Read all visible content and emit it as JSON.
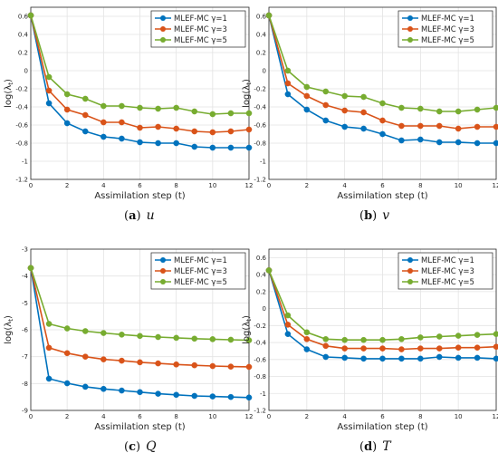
{
  "chart_data": [
    {
      "type": "line",
      "caption": {
        "label": "(a)",
        "symbol": "u"
      },
      "xlabel": "Assimilation step (t)",
      "ylabel": "log(λ_t)",
      "xlim": [
        0,
        12
      ],
      "ylim": [
        -1.2,
        0.7
      ],
      "xticks": [
        "0",
        "2",
        "4",
        "6",
        "8",
        "10",
        "12"
      ],
      "yticks": [
        "0.6",
        "0.4",
        "0.2",
        "0",
        "-0.2",
        "-0.4",
        "-0.6",
        "-0.8",
        "-1",
        "-1.2"
      ],
      "x": [
        0,
        1,
        2,
        3,
        4,
        5,
        6,
        7,
        8,
        9,
        10,
        11,
        12
      ],
      "grid": true,
      "legend_position": "top-right",
      "series": [
        {
          "name": "MLEF-MC γ=1",
          "color": "#0072BD",
          "values": [
            0.61,
            -0.36,
            -0.58,
            -0.67,
            -0.73,
            -0.75,
            -0.79,
            -0.8,
            -0.8,
            -0.84,
            -0.85,
            -0.85,
            -0.85
          ]
        },
        {
          "name": "MLEF-MC γ=3",
          "color": "#D95319",
          "values": [
            0.61,
            -0.22,
            -0.43,
            -0.49,
            -0.57,
            -0.57,
            -0.63,
            -0.62,
            -0.64,
            -0.67,
            -0.68,
            -0.67,
            -0.65
          ]
        },
        {
          "name": "MLEF-MC γ=5",
          "color": "#77AC30",
          "values": [
            0.61,
            -0.07,
            -0.26,
            -0.31,
            -0.39,
            -0.39,
            -0.41,
            -0.42,
            -0.41,
            -0.45,
            -0.48,
            -0.47,
            -0.47
          ]
        }
      ]
    },
    {
      "type": "line",
      "caption": {
        "label": "(b)",
        "symbol": "v"
      },
      "xlabel": "Assimilation step (t)",
      "ylabel": "log(λ_t)",
      "xlim": [
        0,
        12
      ],
      "ylim": [
        -1.2,
        0.7
      ],
      "xticks": [
        "0",
        "2",
        "4",
        "6",
        "8",
        "10",
        "12"
      ],
      "yticks": [
        "0.6",
        "0.4",
        "0.2",
        "0",
        "-0.2",
        "-0.4",
        "-0.6",
        "-0.8",
        "-1",
        "-1.2"
      ],
      "x": [
        0,
        1,
        2,
        3,
        4,
        5,
        6,
        7,
        8,
        9,
        10,
        11,
        12
      ],
      "grid": true,
      "legend_position": "top-right",
      "series": [
        {
          "name": "MLEF-MC γ=1",
          "color": "#0072BD",
          "values": [
            0.61,
            -0.26,
            -0.43,
            -0.55,
            -0.62,
            -0.64,
            -0.7,
            -0.77,
            -0.76,
            -0.79,
            -0.79,
            -0.8,
            -0.8
          ]
        },
        {
          "name": "MLEF-MC γ=3",
          "color": "#D95319",
          "values": [
            0.61,
            -0.14,
            -0.28,
            -0.38,
            -0.44,
            -0.46,
            -0.55,
            -0.61,
            -0.61,
            -0.61,
            -0.64,
            -0.62,
            -0.62
          ]
        },
        {
          "name": "MLEF-MC γ=5",
          "color": "#77AC30",
          "values": [
            0.61,
            0.0,
            -0.18,
            -0.23,
            -0.28,
            -0.29,
            -0.36,
            -0.41,
            -0.42,
            -0.45,
            -0.45,
            -0.43,
            -0.41
          ]
        }
      ]
    },
    {
      "type": "line",
      "caption": {
        "label": "(c)",
        "symbol": "Q"
      },
      "xlabel": "Assimilation step (t)",
      "ylabel": "log(λ_t)",
      "xlim": [
        0,
        12
      ],
      "ylim": [
        -9,
        -3
      ],
      "xticks": [
        "0",
        "2",
        "4",
        "6",
        "8",
        "10",
        "12"
      ],
      "yticks": [
        "-3",
        "-4",
        "-5",
        "-6",
        "-7",
        "-8",
        "-9"
      ],
      "x": [
        0,
        1,
        2,
        3,
        4,
        5,
        6,
        7,
        8,
        9,
        10,
        11,
        12
      ],
      "grid": true,
      "legend_position": "top-right",
      "series": [
        {
          "name": "MLEF-MC γ=1",
          "color": "#0072BD",
          "values": [
            -3.7,
            -7.82,
            -7.99,
            -8.12,
            -8.2,
            -8.26,
            -8.32,
            -8.38,
            -8.42,
            -8.46,
            -8.48,
            -8.5,
            -8.52
          ]
        },
        {
          "name": "MLEF-MC γ=3",
          "color": "#D95319",
          "values": [
            -3.7,
            -6.67,
            -6.87,
            -7.0,
            -7.1,
            -7.15,
            -7.21,
            -7.25,
            -7.29,
            -7.32,
            -7.35,
            -7.37,
            -7.38
          ]
        },
        {
          "name": "MLEF-MC γ=5",
          "color": "#77AC30",
          "values": [
            -3.7,
            -5.78,
            -5.95,
            -6.05,
            -6.12,
            -6.18,
            -6.23,
            -6.27,
            -6.3,
            -6.33,
            -6.35,
            -6.37,
            -6.39
          ]
        }
      ]
    },
    {
      "type": "line",
      "caption": {
        "label": "(d)",
        "symbol": "T"
      },
      "xlabel": "Assimilation step (t)",
      "ylabel": "log(λ_t)",
      "xlim": [
        0,
        12
      ],
      "ylim": [
        -1.2,
        0.7
      ],
      "xticks": [
        "0",
        "2",
        "4",
        "6",
        "8",
        "10",
        "12"
      ],
      "yticks": [
        "0.6",
        "0.4",
        "0.2",
        "0",
        "-0.2",
        "-0.4",
        "-0.6",
        "-0.8",
        "-1",
        "-1.2"
      ],
      "x": [
        0,
        1,
        2,
        3,
        4,
        5,
        6,
        7,
        8,
        9,
        10,
        11,
        12
      ],
      "grid": true,
      "legend_position": "top-right",
      "series": [
        {
          "name": "MLEF-MC γ=1",
          "color": "#0072BD",
          "values": [
            0.45,
            -0.3,
            -0.48,
            -0.57,
            -0.58,
            -0.59,
            -0.59,
            -0.59,
            -0.59,
            -0.57,
            -0.58,
            -0.58,
            -0.59
          ]
        },
        {
          "name": "MLEF-MC γ=3",
          "color": "#D95319",
          "values": [
            0.45,
            -0.19,
            -0.36,
            -0.44,
            -0.47,
            -0.47,
            -0.47,
            -0.48,
            -0.47,
            -0.47,
            -0.46,
            -0.46,
            -0.45
          ]
        },
        {
          "name": "MLEF-MC γ=5",
          "color": "#77AC30",
          "values": [
            0.45,
            -0.08,
            -0.28,
            -0.36,
            -0.37,
            -0.37,
            -0.37,
            -0.36,
            -0.34,
            -0.33,
            -0.32,
            -0.31,
            -0.3
          ]
        }
      ]
    }
  ]
}
